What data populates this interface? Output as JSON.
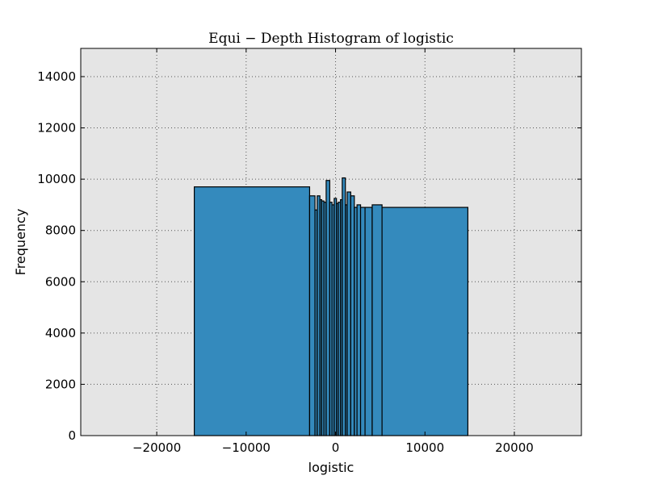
{
  "chart_data": {
    "type": "bar",
    "title": "Equi − Depth Histogram of logistic",
    "xlabel": "logistic",
    "ylabel": "Frequency",
    "xlim": [
      -28500,
      27500
    ],
    "ylim": [
      0,
      15100
    ],
    "xticks": [
      -20000,
      -10000,
      0,
      10000,
      20000
    ],
    "xtick_labels": [
      "−20000",
      "−10000",
      "0",
      "10000",
      "20000"
    ],
    "yticks": [
      0,
      2000,
      4000,
      6000,
      8000,
      10000,
      12000,
      14000
    ],
    "ytick_labels": [
      "0",
      "2000",
      "4000",
      "6000",
      "8000",
      "10000",
      "12000",
      "14000"
    ],
    "grid": true,
    "colors": {
      "bar_fill": "#348abd",
      "bar_edge": "#000000",
      "plot_background": "#e5e5e5",
      "grid": "#555555"
    },
    "bins": [
      {
        "x0": -15800,
        "x1": -2900,
        "y": 9700
      },
      {
        "x0": -2900,
        "x1": -2300,
        "y": 9350
      },
      {
        "x0": -2300,
        "x1": -2050,
        "y": 8800
      },
      {
        "x0": -2050,
        "x1": -1750,
        "y": 9350
      },
      {
        "x0": -1750,
        "x1": -1550,
        "y": 9200
      },
      {
        "x0": -1550,
        "x1": -1300,
        "y": 9150
      },
      {
        "x0": -1300,
        "x1": -1050,
        "y": 9100
      },
      {
        "x0": -1050,
        "x1": -650,
        "y": 9950
      },
      {
        "x0": -650,
        "x1": -400,
        "y": 9100
      },
      {
        "x0": -400,
        "x1": -150,
        "y": 9000
      },
      {
        "x0": -150,
        "x1": 100,
        "y": 9250
      },
      {
        "x0": 100,
        "x1": 300,
        "y": 9050
      },
      {
        "x0": 300,
        "x1": 550,
        "y": 9100
      },
      {
        "x0": 550,
        "x1": 750,
        "y": 9200
      },
      {
        "x0": 750,
        "x1": 1100,
        "y": 10050
      },
      {
        "x0": 1100,
        "x1": 1300,
        "y": 9000
      },
      {
        "x0": 1300,
        "x1": 1700,
        "y": 9500
      },
      {
        "x0": 1700,
        "x1": 2100,
        "y": 9350
      },
      {
        "x0": 2100,
        "x1": 2400,
        "y": 8900
      },
      {
        "x0": 2400,
        "x1": 2800,
        "y": 9000
      },
      {
        "x0": 2800,
        "x1": 3300,
        "y": 8900
      },
      {
        "x0": 3300,
        "x1": 4100,
        "y": 8900
      },
      {
        "x0": 4100,
        "x1": 5200,
        "y": 9000
      },
      {
        "x0": 5200,
        "x1": 14800,
        "y": 8900
      }
    ]
  }
}
